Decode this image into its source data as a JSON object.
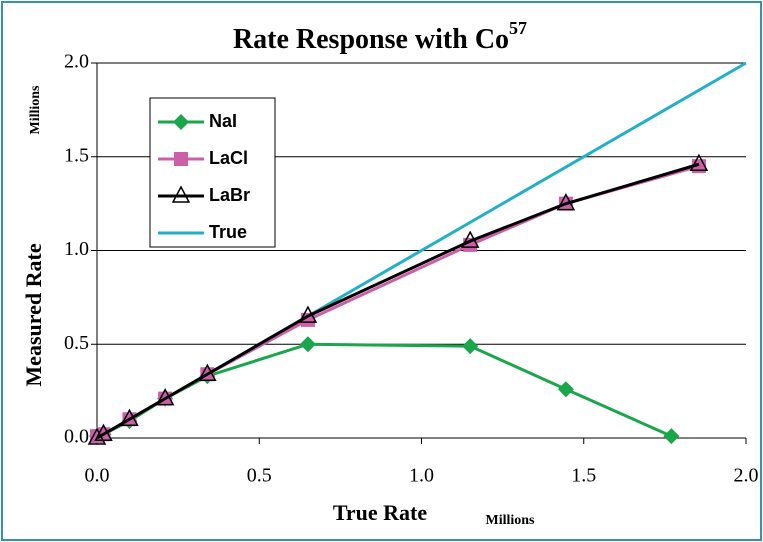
{
  "chart_data": {
    "type": "line",
    "title": "Rate Response with Co",
    "title_superscript": "57",
    "x_label": "True Rate",
    "y_label": "Measured Rate",
    "x_unit": "Millions",
    "y_unit": "Millions",
    "xlim": [
      0,
      2
    ],
    "ylim": [
      0,
      2
    ],
    "xticks": [
      {
        "value": 0,
        "label": "0.0"
      },
      {
        "value": 0.5,
        "label": "0.5"
      },
      {
        "value": 1,
        "label": "1.0"
      },
      {
        "value": 1.5,
        "label": "1.5"
      },
      {
        "value": 2,
        "label": "2.0"
      }
    ],
    "yticks": [
      {
        "value": 0,
        "label": "0.0"
      },
      {
        "value": 0.5,
        "label": "0.5"
      },
      {
        "value": 1,
        "label": "1.0"
      },
      {
        "value": 1.5,
        "label": "1.5"
      },
      {
        "value": 2,
        "label": "2.0"
      }
    ],
    "grid": true,
    "series": [
      {
        "name": "NaI",
        "color": "#1aa64a",
        "marker": "diamond",
        "x": [
          0,
          0.02,
          0.1,
          0.21,
          0.34,
          0.65,
          1.15,
          1.445,
          1.77
        ],
        "values": [
          0.01,
          0.02,
          0.09,
          0.21,
          0.33,
          0.5,
          0.49,
          0.26,
          0.01
        ]
      },
      {
        "name": "LaCl",
        "color": "#cc5fa8",
        "marker": "square",
        "x": [
          0,
          0.02,
          0.1,
          0.21,
          0.34,
          0.65,
          1.15,
          1.445,
          1.855
        ],
        "values": [
          0.01,
          0.02,
          0.1,
          0.21,
          0.34,
          0.63,
          1.03,
          1.25,
          1.45
        ]
      },
      {
        "name": "LaBr",
        "color": "#000000",
        "marker": "triangle",
        "x": [
          0,
          0.02,
          0.1,
          0.21,
          0.34,
          0.65,
          1.15,
          1.445,
          1.855
        ],
        "values": [
          0.0,
          0.02,
          0.1,
          0.21,
          0.34,
          0.65,
          1.05,
          1.25,
          1.46
        ]
      },
      {
        "name": "True",
        "color": "#22b0c8",
        "marker": null,
        "x": [
          0,
          2
        ],
        "values": [
          0,
          2
        ]
      }
    ]
  }
}
